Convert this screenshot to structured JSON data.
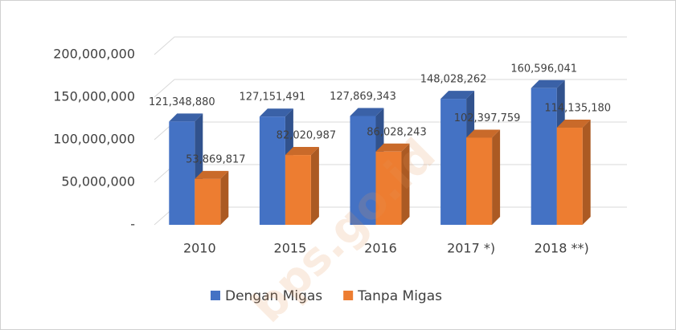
{
  "chart_data": {
    "type": "bar3d",
    "categories": [
      "2010",
      "2015",
      "2016",
      "2017 *)",
      "2018 **)"
    ],
    "series": [
      {
        "name": "Dengan Migas",
        "color": "#4472c4",
        "values": [
          121348880,
          127151491,
          127869343,
          148028262,
          160596041
        ],
        "value_labels": [
          "121,348,880",
          "127,151,491",
          "127,869,343",
          "148,028,262",
          "160,596,041"
        ]
      },
      {
        "name": "Tanpa Migas",
        "color": "#ed7d31",
        "values": [
          53869817,
          82020987,
          86028243,
          102397759,
          114135180
        ],
        "value_labels": [
          "53,869,817",
          "82,020,987",
          "86,028,243",
          "102,397,759",
          "114,135,180"
        ]
      }
    ],
    "ylim": [
      0,
      200000000
    ],
    "yticks": [
      {
        "value": 0,
        "label": "-"
      },
      {
        "value": 50000000,
        "label": "50,000,000"
      },
      {
        "value": 100000000,
        "label": "100,000,000"
      },
      {
        "value": 150000000,
        "label": "150,000,000"
      },
      {
        "value": 200000000,
        "label": "200,000,000"
      }
    ],
    "grid": true,
    "legend": "bottom",
    "watermark": "bps.go.id"
  }
}
